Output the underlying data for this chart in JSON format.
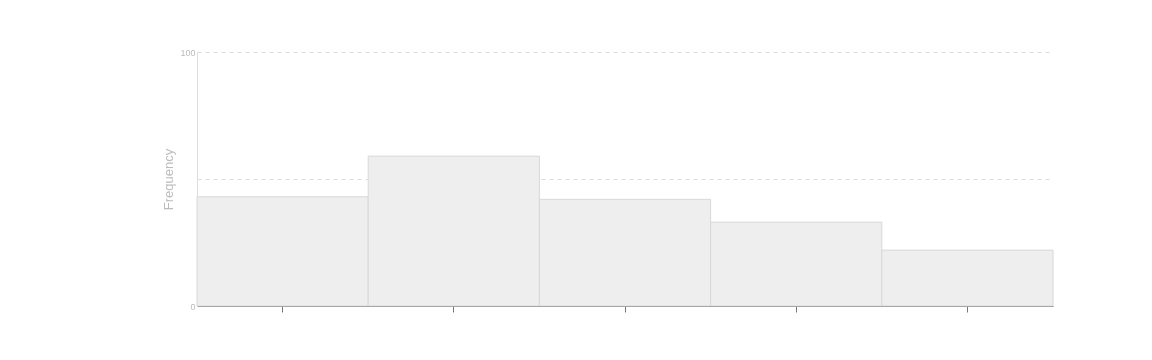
{
  "chart_data": {
    "type": "bar",
    "ylabel": "Frequency",
    "categories": [
      null,
      null,
      null,
      null,
      null
    ],
    "values": [
      43,
      59,
      42,
      33,
      22
    ],
    "color": "#eeeeee",
    "ylim": [
      0,
      100
    ],
    "yticks": [
      0,
      {
        "value": 50,
        "label": null
      },
      100
    ],
    "grid": "y"
  }
}
